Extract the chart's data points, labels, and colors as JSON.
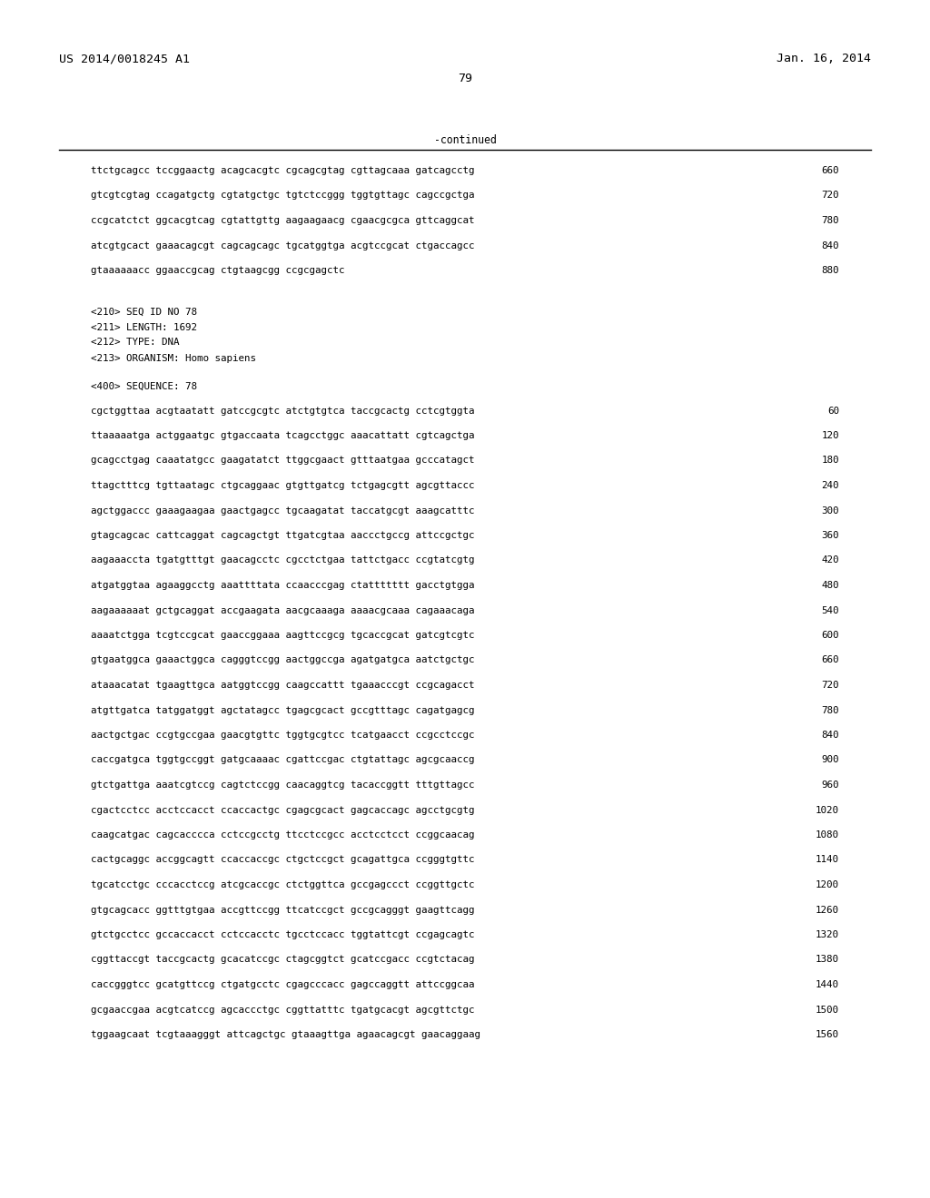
{
  "background_color": "#ffffff",
  "top_left_text": "US 2014/0018245 A1",
  "top_right_text": "Jan. 16, 2014",
  "page_number": "79",
  "continued_label": "-continued",
  "font_family": "DejaVu Sans Mono",
  "title_fontsize": 9.5,
  "body_fontsize": 7.8,
  "seq_lines_above": [
    [
      "ttctgcagcc tccggaactg acagcacgtc cgcagcgtag cgttagcaaa gatcagcctg",
      "660"
    ],
    [
      "gtcgtcgtag ccagatgctg cgtatgctgc tgtctccggg tggtgttagc cagccgctga",
      "720"
    ],
    [
      "ccgcatctct ggcacgtcag cgtattgttg aagaagaacg cgaacgcgca gttcaggcat",
      "780"
    ],
    [
      "atcgtgcact gaaacagcgt cagcagcagc tgcatggtga acgtccgcat ctgaccagcc",
      "840"
    ],
    [
      "gtaaaaaacc ggaaccgcag ctgtaagcgg ccgcgagctc",
      "880"
    ]
  ],
  "metadata_lines": [
    "<210> SEQ ID NO 78",
    "<211> LENGTH: 1692",
    "<212> TYPE: DNA",
    "<213> ORGANISM: Homo sapiens"
  ],
  "sequence_label": "<400> SEQUENCE: 78",
  "seq_lines_below": [
    [
      "cgctggttaa acgtaatatt gatccgcgtc atctgtgtca taccgcactg cctcgtggta",
      "60"
    ],
    [
      "ttaaaaatga actggaatgc gtgaccaata tcagcctggc aaacattatt cgtcagctga",
      "120"
    ],
    [
      "gcagcctgag caaatatgcc gaagatatct ttggcgaact gtttaatgaa gcccatagct",
      "180"
    ],
    [
      "ttagctttcg tgttaatagc ctgcaggaac gtgttgatcg tctgagcgtt agcgttaccc",
      "240"
    ],
    [
      "agctggaccc gaaagaagaa gaactgagcc tgcaagatat taccatgcgt aaagcatttc",
      "300"
    ],
    [
      "gtagcagcac cattcaggat cagcagctgt ttgatcgtaa aaccctgccg attccgctgc",
      "360"
    ],
    [
      "aagaaaccta tgatgtttgt gaacagcctc cgcctctgaa tattctgacc ccgtatcgtg",
      "420"
    ],
    [
      "atgatggtaa agaaggcctg aaattttata ccaacccgag ctattttttt gacctgtgga",
      "480"
    ],
    [
      "aagaaaaaat gctgcaggat accgaagata aacgcaaaga aaaacgcaaa cagaaacaga",
      "540"
    ],
    [
      "aaaatctgga tcgtccgcat gaaccggaaa aagttccgcg tgcaccgcat gatcgtcgtc",
      "600"
    ],
    [
      "gtgaatggca gaaactggca cagggtccgg aactggccga agatgatgca aatctgctgc",
      "660"
    ],
    [
      "ataaacatat tgaagttgca aatggtccgg caagccattt tgaaacccgt ccgcagacct",
      "720"
    ],
    [
      "atgttgatca tatggatggt agctatagcc tgagcgcact gccgtttagc cagatgagcg",
      "780"
    ],
    [
      "aactgctgac ccgtgccgaa gaacgtgttc tggtgcgtcc tcatgaacct ccgcctccgc",
      "840"
    ],
    [
      "caccgatgca tggtgccggt gatgcaaaac cgattccgac ctgtattagc agcgcaaccg",
      "900"
    ],
    [
      "gtctgattga aaatcgtccg cagtctccgg caacaggtcg tacaccggtt tttgttagcc",
      "960"
    ],
    [
      "cgactcctcc acctccacct ccaccactgc cgagcgcact gagcaccagc agcctgcgtg",
      "1020"
    ],
    [
      "caagcatgac cagcacccca cctccgcctg ttcctccgcc acctcctcct ccggcaacag",
      "1080"
    ],
    [
      "cactgcaggc accggcagtt ccaccaccgc ctgctccgct gcagattgca ccgggtgttc",
      "1140"
    ],
    [
      "tgcatcctgc cccacctccg atcgcaccgc ctctggttca gccgagccct ccggttgctc",
      "1200"
    ],
    [
      "gtgcagcacc ggtttgtgaa accgttccgg ttcatccgct gccgcagggt gaagttcagg",
      "1260"
    ],
    [
      "gtctgcctcc gccaccacct cctccacctc tgcctccacc tggtattcgt ccgagcagtc",
      "1320"
    ],
    [
      "cggttaccgt taccgcactg gcacatccgc ctagcggtct gcatccgacc ccgtctacag",
      "1380"
    ],
    [
      "caccgggtcc gcatgttccg ctgatgcctc cgagcccacc gagccaggtt attccggcaa",
      "1440"
    ],
    [
      "gcgaaccgaa acgtcatccg agcaccctgc cggttatttc tgatgcacgt agcgttctgc",
      "1500"
    ],
    [
      "tggaagcaat tcgtaaagggt attcagctgc gtaaagttga agaacagcgt gaacaggaag",
      "1560"
    ]
  ]
}
